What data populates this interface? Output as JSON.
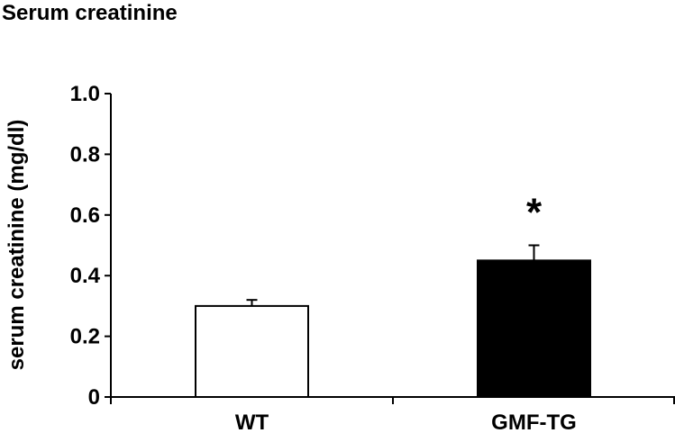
{
  "chart_data": {
    "type": "bar",
    "title": "Serum creatinine",
    "ylabel": "serum creatinine (mg/dl)",
    "xlabel": "",
    "categories": [
      "WT",
      "GMF-TG"
    ],
    "values": [
      0.3,
      0.45
    ],
    "errors": [
      0.02,
      0.05
    ],
    "ylim": [
      0,
      1.0
    ],
    "yticks": [
      0,
      0.2,
      0.4,
      0.6,
      0.8,
      1.0
    ],
    "ytick_labels": [
      "0",
      "0.2",
      "0.4",
      "0.6",
      "0.8",
      "1.0"
    ],
    "bar_colors": [
      "#ffffff",
      "#000000"
    ],
    "annotations": [
      {
        "category": "GMF-TG",
        "text": "*"
      }
    ],
    "grid": false,
    "legend": "none"
  }
}
